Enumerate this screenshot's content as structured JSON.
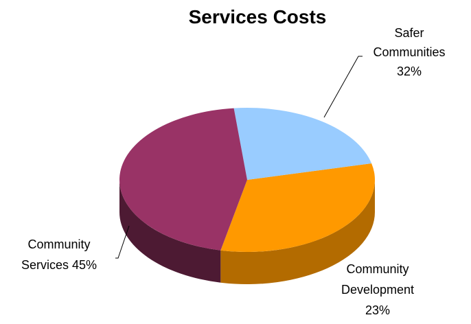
{
  "chart_data": {
    "type": "pie",
    "title": "Services Costs",
    "slices": [
      {
        "label_lines": [
          "Safer",
          "Communities",
          "32%"
        ],
        "value": 32,
        "color": "#FF9900",
        "side_color": "#B36B00"
      },
      {
        "label_lines": [
          "Community",
          "Development",
          "23%"
        ],
        "value": 23,
        "color": "#99CCFF",
        "side_color": "#4D6680"
      },
      {
        "label_lines": [
          "Community",
          "Services 45%"
        ],
        "value": 45,
        "color": "#993366",
        "side_color": "#4D1A33"
      }
    ],
    "legend": "none",
    "style": "3d"
  }
}
